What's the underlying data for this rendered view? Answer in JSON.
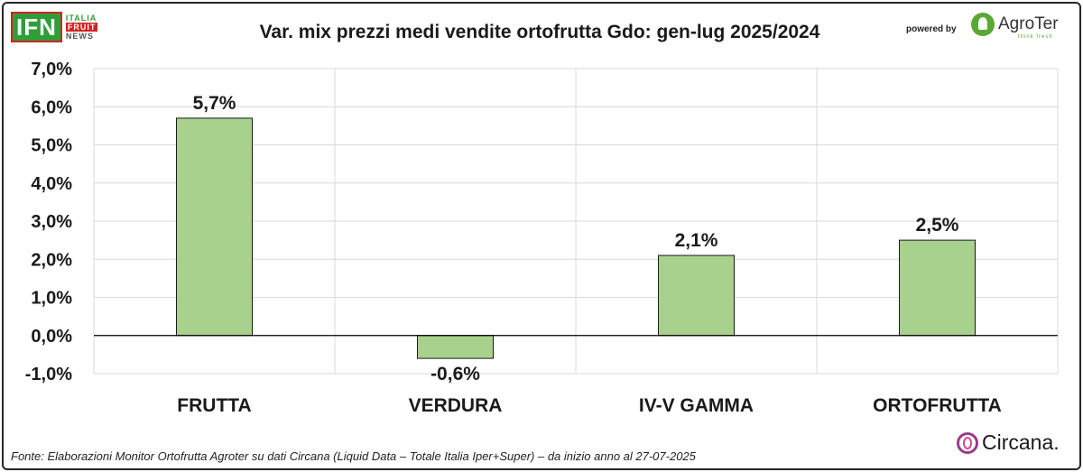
{
  "header": {
    "logo_main": "IFN",
    "logo_sub": [
      "ITALIA",
      "FRUIT",
      "NEWS"
    ],
    "title": "Var. mix prezzi medi vendite ortofrutta Gdo: gen-lug 2025/2024",
    "powered_by": "powered by",
    "partner_logo": "AgroTer",
    "partner_tagline": "think fresh"
  },
  "footer": {
    "source": "Fonte: Elaborazioni Monitor Ortofrutta Agroter su dati Circana (Liquid Data – Totale Italia Iper+Super) –  da inizio anno al 27-07-2025",
    "data_provider_logo": "Circana."
  },
  "chart_data": {
    "type": "bar",
    "title": "Var. mix prezzi medi vendite ortofrutta Gdo: gen-lug 2025/2024",
    "categories": [
      "FRUTTA",
      "VERDURA",
      "IV-V GAMMA",
      "ORTOFRUTTA"
    ],
    "values": [
      5.7,
      -0.6,
      2.1,
      2.5
    ],
    "data_labels": [
      "5,7%",
      "-0,6%",
      "2,1%",
      "2,5%"
    ],
    "ylim": [
      -1.0,
      7.0
    ],
    "yticks": [
      -1.0,
      0.0,
      1.0,
      2.0,
      3.0,
      4.0,
      5.0,
      6.0,
      7.0
    ],
    "ytick_labels": [
      "-1,0%",
      "0,0%",
      "1,0%",
      "2,0%",
      "3,0%",
      "4,0%",
      "5,0%",
      "6,0%",
      "7,0%"
    ],
    "xlabel": "",
    "ylabel": "",
    "grid": true,
    "legend": "none",
    "colors": {
      "bar_fill": "#a9d18e",
      "bar_stroke": "#1a1a1a",
      "grid": "#d9d9d9",
      "axis": "#000000"
    }
  }
}
